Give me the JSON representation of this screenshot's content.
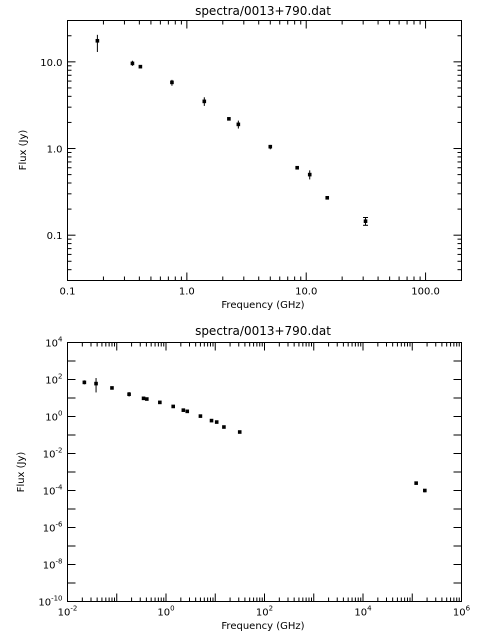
{
  "chart_data": [
    {
      "type": "scatter",
      "title": "spectra/0013+790.dat",
      "xlabel": "Frequency (GHz)",
      "ylabel": "Flux (Jy)",
      "xscale": "log",
      "yscale": "log",
      "xlim": [
        0.1,
        200
      ],
      "ylim": [
        0.03,
        30
      ],
      "xticklabels": [
        {
          "v": 0.1,
          "t": "0.1"
        },
        {
          "v": 1,
          "t": "1.0"
        },
        {
          "v": 10,
          "t": "10.0"
        },
        {
          "v": 100,
          "t": "100.0"
        }
      ],
      "yticklabels": [
        {
          "v": 0.1,
          "t": "0.1"
        },
        {
          "v": 1,
          "t": "1.0"
        },
        {
          "v": 10,
          "t": "10.0"
        }
      ],
      "points": [
        {
          "x": 0.178,
          "y": 17.5,
          "ylo": 13.0,
          "yhi": 20.5
        },
        {
          "x": 0.35,
          "y": 9.6,
          "ylo": 9.0,
          "yhi": 10.3
        },
        {
          "x": 0.408,
          "y": 8.8
        },
        {
          "x": 0.75,
          "y": 5.8,
          "ylo": 5.3,
          "yhi": 6.2
        },
        {
          "x": 1.4,
          "y": 3.5,
          "ylo": 3.1,
          "yhi": 3.9
        },
        {
          "x": 2.25,
          "y": 2.2
        },
        {
          "x": 2.7,
          "y": 1.9,
          "ylo": 1.7,
          "yhi": 2.1
        },
        {
          "x": 5.0,
          "y": 1.05,
          "ylo": 0.98,
          "yhi": 1.1
        },
        {
          "x": 8.4,
          "y": 0.6
        },
        {
          "x": 10.7,
          "y": 0.5,
          "ylo": 0.44,
          "yhi": 0.56
        },
        {
          "x": 15.0,
          "y": 0.27
        },
        {
          "x": 31.4,
          "y": 0.145,
          "ylo": 0.13,
          "yhi": 0.16,
          "cap": true
        }
      ]
    },
    {
      "type": "scatter",
      "title": "spectra/0013+790.dat",
      "xlabel": "Frequency (GHz)",
      "ylabel": "Flux (Jy)",
      "xscale": "log",
      "yscale": "log",
      "xlim": [
        0.01,
        1000000
      ],
      "ylim": [
        1e-10,
        10000
      ],
      "xticklabels": [
        {
          "v": 0.01,
          "b": "10",
          "e": "-2"
        },
        {
          "v": 1,
          "b": "10",
          "e": "0"
        },
        {
          "v": 100,
          "b": "10",
          "e": "2"
        },
        {
          "v": 10000,
          "b": "10",
          "e": "4"
        },
        {
          "v": 1000000,
          "b": "10",
          "e": "6"
        }
      ],
      "yticklabels": [
        {
          "v": 1e-10,
          "b": "10",
          "e": "-10"
        },
        {
          "v": 1e-08,
          "b": "10",
          "e": "-8"
        },
        {
          "v": 1e-06,
          "b": "10",
          "e": "-6"
        },
        {
          "v": 0.0001,
          "b": "10",
          "e": "-4"
        },
        {
          "v": 0.01,
          "b": "10",
          "e": "-2"
        },
        {
          "v": 1,
          "b": "10",
          "e": "0"
        },
        {
          "v": 100,
          "b": "10",
          "e": "2"
        },
        {
          "v": 10000,
          "b": "10",
          "e": "4"
        }
      ],
      "points": [
        {
          "x": 0.022,
          "y": 70,
          "ylo": 55,
          "yhi": 90
        },
        {
          "x": 0.038,
          "y": 60,
          "ylo": 20,
          "yhi": 120
        },
        {
          "x": 0.08,
          "y": 35
        },
        {
          "x": 0.178,
          "y": 16,
          "ylo": 12,
          "yhi": 21
        },
        {
          "x": 0.35,
          "y": 9.6
        },
        {
          "x": 0.408,
          "y": 8.8
        },
        {
          "x": 0.75,
          "y": 5.8
        },
        {
          "x": 1.4,
          "y": 3.5
        },
        {
          "x": 2.25,
          "y": 2.2
        },
        {
          "x": 2.7,
          "y": 1.9
        },
        {
          "x": 5.0,
          "y": 1.05
        },
        {
          "x": 8.4,
          "y": 0.6
        },
        {
          "x": 10.7,
          "y": 0.5
        },
        {
          "x": 15.0,
          "y": 0.27
        },
        {
          "x": 31.4,
          "y": 0.145,
          "cap": true
        },
        {
          "x": 120000,
          "y": 0.00025
        },
        {
          "x": 180000,
          "y": 0.0001,
          "ylo": 8e-05,
          "yhi": 0.00012
        }
      ]
    }
  ]
}
